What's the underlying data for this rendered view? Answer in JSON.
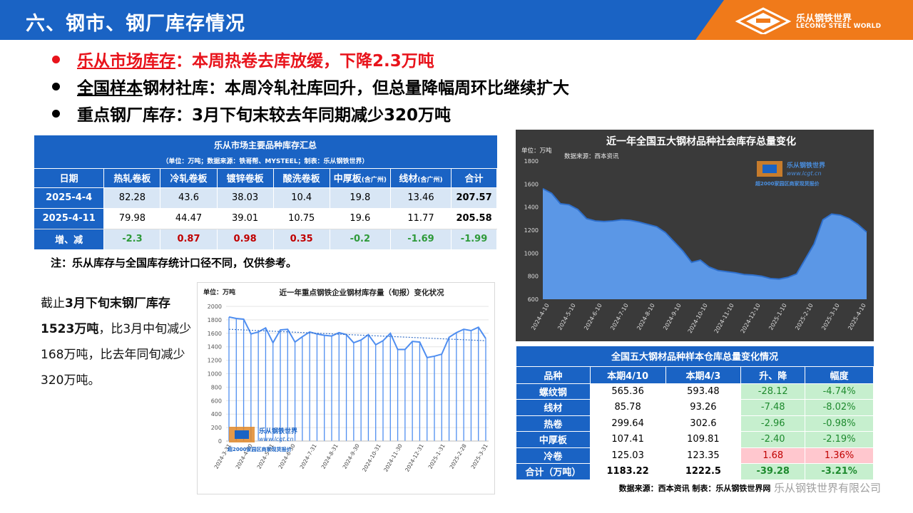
{
  "header": {
    "title": "六、钢市、钢厂库存情况",
    "logo_cn": "乐从钢铁世界",
    "logo_en": "LECONG STEEL WORLD"
  },
  "bullets": [
    {
      "head": "乐从市场库存",
      "body": "：本周热卷去库放缓，下降2.3万吨"
    },
    {
      "head": "全国样本",
      "body": "钢材社库：本周冷轧社库回升，但总量降幅周环比继续扩大"
    },
    {
      "head": "重点钢厂库存",
      "body": "：3月下旬末较去年同期减少320万吨"
    }
  ],
  "table1": {
    "title": "乐从市场主要品种库存汇总",
    "subtitle": "（单位：万吨；数据来源：铁哥帮、MYSTEEL；制表：乐从钢铁世界）",
    "headers": [
      "日期",
      "热轧卷板",
      "冷轧卷板",
      "镀锌卷板",
      "酸洗卷板",
      "中厚板",
      "线材",
      "合计"
    ],
    "header_suffix": "(含广州)",
    "rows": [
      [
        "2025-4-4",
        "82.28",
        "43.6",
        "38.03",
        "10.4",
        "19.8",
        "13.46",
        "207.57"
      ],
      [
        "2025-4-11",
        "79.98",
        "44.47",
        "39.01",
        "10.75",
        "19.6",
        "11.77",
        "205.58"
      ],
      [
        "增、减",
        "-2.3",
        "0.87",
        "0.98",
        "0.35",
        "-0.2",
        "-1.69",
        "-1.99"
      ]
    ]
  },
  "note": "注：乐从库存与全国库存统计口径不同，仅供参考。",
  "side_text": {
    "p1": "截止",
    "p2": "3月下旬末钢厂库存1523万吨",
    "p3": "，比3月中旬减少168万吨，比去年同旬减少320万吨。"
  },
  "watermark": {
    "cn": "乐从钢铁世界",
    "url": "www.lcgt.cn",
    "tag": "超2000家园区商家现货报价"
  },
  "chart1_data": {
    "type": "bar",
    "title": "近一年重点钢铁企业钢材库存量（旬报）变化状况",
    "unit": "单位：万吨",
    "ylim": [
      0,
      2000
    ],
    "yticks": [
      0,
      200,
      400,
      600,
      800,
      1000,
      1200,
      1400,
      1600,
      1800,
      2000
    ],
    "x_tick_labels": [
      "2024-3-31",
      "2024-4-30",
      "2024-5-31",
      "2024-6-30",
      "2024-7-31",
      "2024-8-31",
      "2024-9-30",
      "2024-10-31",
      "2024-11-30",
      "2024-12-31",
      "2025-1-31",
      "2025-2-28",
      "2025-3-31"
    ],
    "values": [
      1843,
      1820,
      1810,
      1590,
      1620,
      1680,
      1460,
      1650,
      1660,
      1470,
      1550,
      1620,
      1590,
      1570,
      1560,
      1610,
      1580,
      1460,
      1500,
      1580,
      1430,
      1490,
      1600,
      1360,
      1360,
      1480,
      1470,
      1240,
      1260,
      1290,
      1540,
      1610,
      1660,
      1640,
      1690,
      1523
    ],
    "trend": [
      1660,
      1490
    ]
  },
  "chart2_data": {
    "type": "area",
    "title": "近一年全国五大钢材品种社会库存总量变化",
    "unit": "单位：万吨",
    "source": "数据来源：西本资讯",
    "ylim": [
      600,
      1800
    ],
    "yticks": [
      600,
      800,
      1000,
      1200,
      1400,
      1600,
      1800
    ],
    "x_tick_labels": [
      "2024-4-10",
      "2024-5-10",
      "2024-6-10",
      "2024-7-10",
      "2024-8-10",
      "2024-9-10",
      "2024-10-10",
      "2024-11-10",
      "2024-12-10",
      "2025-1-10",
      "2025-2-10",
      "2025-3-10",
      "2025-4-10"
    ],
    "values": [
      1560,
      1520,
      1430,
      1420,
      1380,
      1300,
      1280,
      1275,
      1280,
      1290,
      1285,
      1270,
      1250,
      1230,
      1180,
      1100,
      1020,
      920,
      940,
      880,
      850,
      840,
      830,
      815,
      810,
      800,
      780,
      775,
      790,
      820,
      950,
      1080,
      1290,
      1340,
      1330,
      1300,
      1250,
      1183
    ]
  },
  "table2": {
    "title": "全国五大钢材品种样本仓库总量变化情况",
    "headers": [
      "品种",
      "本期4/10",
      "本期4/3",
      "升、降",
      "幅度"
    ],
    "rows": [
      [
        "螺纹钢",
        "565.36",
        "593.48",
        "-28.12",
        "-4.74%"
      ],
      [
        "线材",
        "85.78",
        "93.26",
        "-7.48",
        "-8.02%"
      ],
      [
        "热卷",
        "299.64",
        "302.6",
        "-2.96",
        "-0.98%"
      ],
      [
        "中厚板",
        "107.41",
        "109.81",
        "-2.40",
        "-2.19%"
      ],
      [
        "冷卷",
        "125.03",
        "123.35",
        "1.68",
        "1.36%"
      ],
      [
        "合计（万吨）",
        "1183.22",
        "1222.5",
        "-39.28",
        "-3.21%"
      ]
    ],
    "footer": "数据来源：西本资讯    制表：乐从钢铁世界网"
  },
  "company": "乐从钢铁世界有限公司",
  "colors": {
    "header_blue": "#1a63c4",
    "logo_orange": "#f07a1a",
    "red": "#e8131b",
    "green": "#2e9a3a"
  }
}
